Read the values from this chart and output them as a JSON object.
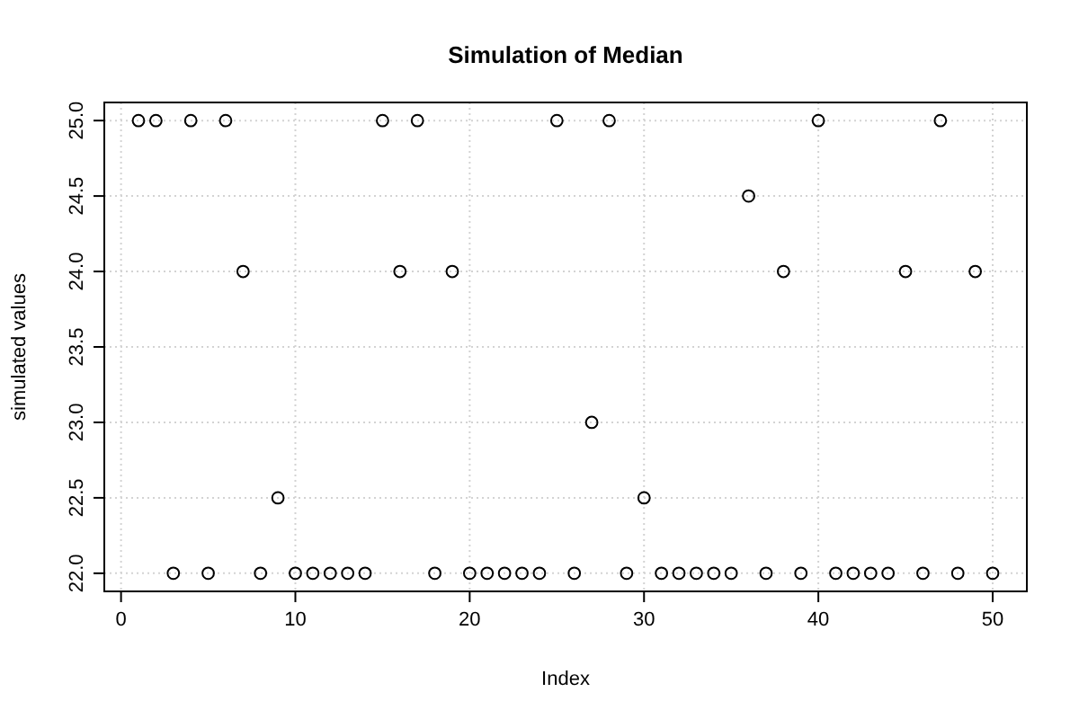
{
  "chart_data": {
    "type": "scatter",
    "title": "Simulation of Median",
    "xlabel": "Index",
    "ylabel": "simulated values",
    "x": [
      1,
      2,
      3,
      4,
      5,
      6,
      7,
      8,
      9,
      10,
      11,
      12,
      13,
      14,
      15,
      16,
      17,
      18,
      19,
      20,
      21,
      22,
      23,
      24,
      25,
      26,
      27,
      28,
      29,
      30,
      31,
      32,
      33,
      34,
      35,
      36,
      37,
      38,
      39,
      40,
      41,
      42,
      43,
      44,
      45,
      46,
      47,
      48,
      49,
      50
    ],
    "values": [
      25,
      25,
      22,
      25,
      22,
      25,
      24,
      22,
      22.5,
      22,
      22,
      22,
      22,
      22,
      25,
      24,
      25,
      22,
      24,
      22,
      22,
      22,
      22,
      22,
      25,
      22,
      23,
      25,
      22,
      22.5,
      22,
      22,
      22,
      22,
      22,
      24.5,
      22,
      24,
      22,
      25,
      22,
      22,
      22,
      22,
      24,
      22,
      25,
      22,
      24,
      22
    ],
    "color": "#000000",
    "marker": "circle",
    "grid": true,
    "xlim": [
      -0.96,
      51.96
    ],
    "xticks": [
      0,
      10,
      20,
      30,
      40,
      50
    ],
    "ylim": [
      21.88,
      25.12
    ],
    "yticks": [
      {
        "value": 22,
        "label": "22.0"
      },
      {
        "value": 22.5,
        "label": "22.5"
      },
      {
        "value": 23,
        "label": "23.0"
      },
      {
        "value": 23.5,
        "label": "23.5"
      },
      {
        "value": 24,
        "label": "24.0"
      },
      {
        "value": 24.5,
        "label": "24.5"
      },
      {
        "value": 25,
        "label": "25.0"
      }
    ]
  }
}
